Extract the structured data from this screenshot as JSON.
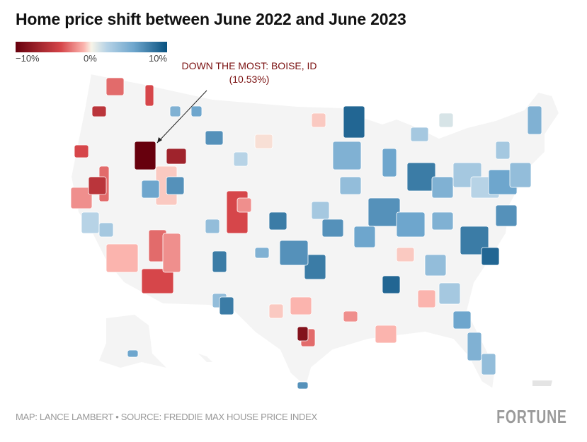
{
  "title": "Home price shift between June 2022 and June 2023",
  "legend": {
    "min_label": "−10%",
    "mid_label": "0%",
    "max_label": "10%",
    "min": -10,
    "max": 10,
    "colors": {
      "low": "#67000d",
      "mid": "#f7f4e8",
      "high": "#08517f"
    }
  },
  "annotation": {
    "line1": "DOWN THE MOST: BOISE, ID",
    "line2": "(10.53%)",
    "metro": "Boise, ID",
    "value": -10.53
  },
  "footer": {
    "credit": "MAP: LANCE LAMBERT • SOURCE: FREDDIE MAX HOUSE PRICE INDEX",
    "logo": "FORTUNE"
  },
  "metros": [
    -10.5,
    -8,
    -6,
    -5,
    -4,
    -7,
    -3,
    -5,
    -6,
    -4,
    -2,
    -5,
    -6,
    -7,
    -6,
    -4,
    -3,
    -5,
    -2,
    -4,
    -3,
    2,
    3,
    5,
    6,
    7,
    8,
    5,
    4,
    6,
    3,
    7,
    8,
    9,
    6,
    5,
    4,
    7,
    8,
    6,
    5,
    3,
    2,
    6,
    4,
    5,
    7,
    8,
    9,
    4,
    -3,
    -2,
    -9,
    3,
    6,
    5,
    4,
    7,
    8,
    9,
    6,
    5,
    3,
    2,
    4,
    6,
    7,
    -1,
    -2,
    3,
    1,
    5,
    6,
    8,
    7
  ]
}
